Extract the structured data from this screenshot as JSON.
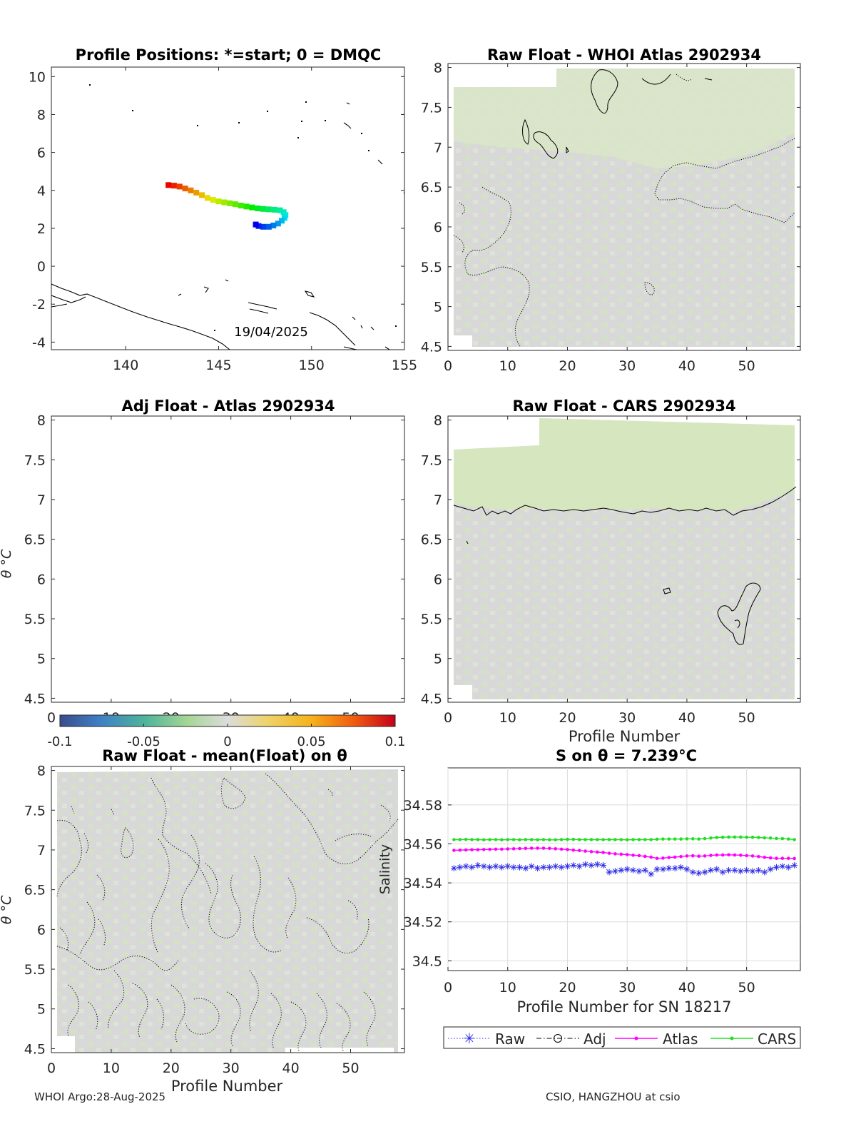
{
  "footer": {
    "left": "WHOI Argo:28-Aug-2025",
    "right": "CSIO, HANGZHOU at csio"
  },
  "colors": {
    "map_track_start": "#d40000",
    "map_track_end": "#1f1fd0",
    "anomaly_green": "#d6e8c0",
    "anomaly_gray": "#d8d8d8",
    "raw": "#2d2de6",
    "adj": "#000000",
    "atlas": "#ff00ff",
    "cars": "#22dd22",
    "grid": "#dcdcdc"
  },
  "chart_data": [
    {
      "id": "map",
      "type": "scatter",
      "title": "Profile Positions: *=start; 0 = DMQC",
      "date_label": "19/04/2025",
      "xlim": [
        136,
        155
      ],
      "ylim": [
        -4.4,
        10.5
      ],
      "xticks": [
        140,
        145,
        150,
        155
      ],
      "yticks": [
        -4,
        -2,
        0,
        2,
        4,
        6,
        8,
        10
      ],
      "track": [
        [
          142.3,
          4.28
        ],
        [
          142.6,
          4.25
        ],
        [
          142.9,
          4.2
        ],
        [
          143.2,
          4.1
        ],
        [
          143.5,
          4.0
        ],
        [
          143.8,
          3.88
        ],
        [
          144.1,
          3.75
        ],
        [
          144.4,
          3.6
        ],
        [
          144.7,
          3.5
        ],
        [
          145.0,
          3.42
        ],
        [
          145.3,
          3.37
        ],
        [
          145.6,
          3.32
        ],
        [
          145.9,
          3.27
        ],
        [
          146.2,
          3.2
        ],
        [
          146.5,
          3.15
        ],
        [
          146.8,
          3.1
        ],
        [
          147.1,
          3.05
        ],
        [
          147.4,
          3.02
        ],
        [
          147.7,
          3.0
        ],
        [
          148.0,
          2.98
        ],
        [
          148.3,
          2.95
        ],
        [
          148.5,
          2.85
        ],
        [
          148.6,
          2.7
        ],
        [
          148.55,
          2.55
        ],
        [
          148.4,
          2.4
        ],
        [
          148.2,
          2.25
        ],
        [
          147.95,
          2.15
        ],
        [
          147.7,
          2.08
        ],
        [
          147.4,
          2.08
        ],
        [
          147.15,
          2.12
        ],
        [
          147.0,
          2.2
        ]
      ]
    },
    {
      "id": "whoi",
      "type": "heatmap",
      "title": "Raw Float - WHOI Atlas  2902934",
      "xlim": [
        0,
        59
      ],
      "ylim": [
        4.45,
        8.05
      ],
      "xticks": [
        0,
        10,
        20,
        30,
        40,
        50
      ],
      "yticks": [
        4.5,
        5,
        5.5,
        6,
        6.5,
        7,
        7.5,
        8
      ],
      "ytick_labels": [
        "4.5",
        "5",
        "5.5",
        "6",
        "6.5",
        "7",
        "7.5",
        "8"
      ]
    },
    {
      "id": "adj",
      "type": "heatmap",
      "title": "Adj Float - Atlas  2902934",
      "ylabel": "θ °C",
      "xlim": [
        0,
        59
      ],
      "ylim": [
        4.45,
        8.05
      ],
      "xticks": [
        0,
        10,
        20,
        30,
        40,
        50
      ],
      "yticks": [
        4.5,
        5,
        5.5,
        6,
        6.5,
        7,
        7.5,
        8
      ],
      "ytick_labels": [
        "4.5",
        "5",
        "5.5",
        "6",
        "6.5",
        "7",
        "7.5",
        "8"
      ],
      "colorbar": {
        "range": [
          -0.1,
          0.1
        ],
        "ticks": [
          -0.1,
          -0.05,
          0,
          0.05,
          0.1
        ],
        "tick_labels": [
          "-0.1",
          "-0.05",
          "0",
          "0.05",
          "0.1"
        ]
      }
    },
    {
      "id": "cars",
      "type": "heatmap",
      "title": "Raw Float - CARS  2902934",
      "xlabel": "Profile Number",
      "xlim": [
        0,
        59
      ],
      "ylim": [
        4.45,
        8.05
      ],
      "xticks": [
        0,
        10,
        20,
        30,
        40,
        50
      ],
      "yticks": [
        4.5,
        5,
        5.5,
        6,
        6.5,
        7,
        7.5,
        8
      ],
      "ytick_labels": [
        "4.5",
        "5",
        "5.5",
        "6",
        "6.5",
        "7",
        "7.5",
        "8"
      ]
    },
    {
      "id": "mean",
      "type": "heatmap",
      "title": "Raw Float - mean(Float) on θ",
      "xlabel": "Profile Number",
      "ylabel": "θ °C",
      "xlim": [
        0,
        59
      ],
      "ylim": [
        4.45,
        8.05
      ],
      "xticks": [
        0,
        10,
        20,
        30,
        40,
        50
      ],
      "yticks": [
        4.5,
        5,
        5.5,
        6,
        6.5,
        7,
        7.5,
        8
      ],
      "ytick_labels": [
        "4.5",
        "5",
        "5.5",
        "6",
        "6.5",
        "7",
        "7.5",
        "8"
      ]
    },
    {
      "id": "salinity",
      "type": "line",
      "title": "S on θ = 7.239°C",
      "xlabel": "Profile Number for SN 18217",
      "ylabel": "Salinity",
      "xlim": [
        0,
        59
      ],
      "ylim": [
        34.495,
        34.599
      ],
      "xticks": [
        0,
        10,
        20,
        30,
        40,
        50
      ],
      "yticks": [
        34.5,
        34.52,
        34.54,
        34.56,
        34.58
      ],
      "ytick_labels": [
        "34.5",
        "34.52",
        "34.54",
        "34.56",
        "34.58"
      ],
      "legend": [
        "Raw",
        "Adj",
        "Atlas",
        "CARS"
      ],
      "series": [
        {
          "name": "Raw",
          "values": [
            34.5475,
            34.548,
            34.5485,
            34.548,
            34.549,
            34.5485,
            34.548,
            34.5485,
            34.548,
            34.5485,
            34.548,
            34.548,
            34.5475,
            34.5485,
            34.5475,
            34.548,
            34.548,
            34.5485,
            34.548,
            34.5485,
            34.549,
            34.5485,
            34.5495,
            34.549,
            34.5495,
            34.549,
            34.5455,
            34.546,
            34.5465,
            34.547,
            34.5465,
            34.546,
            34.5465,
            34.5445,
            34.547,
            34.547,
            34.5475,
            34.5475,
            34.548,
            34.547,
            34.5455,
            34.545,
            34.5455,
            34.5465,
            34.547,
            34.5455,
            34.5465,
            34.5465,
            34.546,
            34.5465,
            34.546,
            34.5465,
            34.5455,
            34.547,
            34.548,
            34.5485,
            34.548,
            34.549
          ]
        },
        {
          "name": "Atlas",
          "values": [
            34.5567,
            34.5568,
            34.5569,
            34.557,
            34.557,
            34.5571,
            34.5572,
            34.5573,
            34.5573,
            34.5574,
            34.5575,
            34.5576,
            34.5577,
            34.5578,
            34.5578,
            34.5578,
            34.5577,
            34.5575,
            34.5573,
            34.5571,
            34.5568,
            34.5566,
            34.5563,
            34.556,
            34.5558,
            34.5556,
            34.5552,
            34.5549,
            34.5547,
            34.5545,
            34.5542,
            34.554,
            34.5536,
            34.5532,
            34.5526,
            34.5527,
            34.553,
            34.5532,
            34.5535,
            34.5538,
            34.5539,
            34.5537,
            34.5538,
            34.5541,
            34.5543,
            34.5543,
            34.5544,
            34.5543,
            34.5542,
            34.554,
            34.5538,
            34.5535,
            34.5531,
            34.5528,
            34.5526,
            34.5526,
            34.5526,
            34.5525
          ]
        },
        {
          "name": "CARS",
          "values": [
            34.5622,
            34.5622,
            34.5623,
            34.5622,
            34.5622,
            34.5621,
            34.5622,
            34.5622,
            34.5621,
            34.5622,
            34.5622,
            34.5621,
            34.5622,
            34.5622,
            34.5621,
            34.5622,
            34.5621,
            34.5621,
            34.5622,
            34.5623,
            34.5623,
            34.5622,
            34.5622,
            34.5622,
            34.5622,
            34.5622,
            34.5622,
            34.5622,
            34.5622,
            34.5621,
            34.5622,
            34.5622,
            34.5622,
            34.5622,
            34.5624,
            34.5625,
            34.5625,
            34.5625,
            34.5625,
            34.5626,
            34.5626,
            34.5625,
            34.5627,
            34.563,
            34.5633,
            34.5634,
            34.5635,
            34.5635,
            34.5635,
            34.5634,
            34.5634,
            34.5633,
            34.5631,
            34.563,
            34.5628,
            34.5627,
            34.5625,
            34.5622
          ]
        }
      ]
    }
  ]
}
